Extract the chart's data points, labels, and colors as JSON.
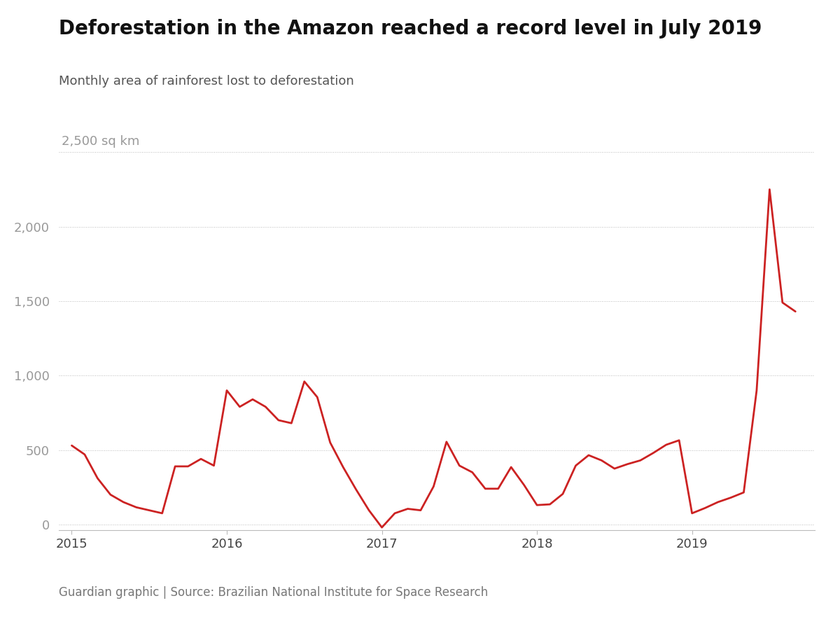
{
  "title": "Deforestation in the Amazon reached a record level in July 2019",
  "subtitle": "Monthly area of rainforest lost to deforestation",
  "sq_km_label": "2,500 sq km",
  "source": "Guardian graphic | Source: Brazilian National Institute for Space Research",
  "line_color": "#cc2222",
  "background_color": "#ffffff",
  "yticks": [
    0,
    500,
    1000,
    1500,
    2000
  ],
  "ytick_top": 2500,
  "ylim": [
    -40,
    2600
  ],
  "values": [
    530,
    470,
    310,
    200,
    150,
    115,
    95,
    75,
    390,
    390,
    440,
    395,
    900,
    790,
    840,
    790,
    700,
    680,
    960,
    855,
    550,
    385,
    235,
    95,
    -20,
    75,
    105,
    95,
    255,
    555,
    395,
    350,
    240,
    240,
    385,
    265,
    130,
    135,
    205,
    395,
    465,
    430,
    375,
    405,
    430,
    480,
    535,
    565,
    75,
    110,
    150,
    180,
    215,
    900,
    2250,
    1490,
    1430
  ],
  "xtick_positions": [
    0,
    12,
    24,
    36,
    48,
    60
  ],
  "xtick_labels": [
    "2015",
    "2016",
    "2017",
    "2018",
    "2019",
    ""
  ],
  "title_fontsize": 20,
  "subtitle_fontsize": 13,
  "tick_fontsize": 13,
  "source_fontsize": 12
}
